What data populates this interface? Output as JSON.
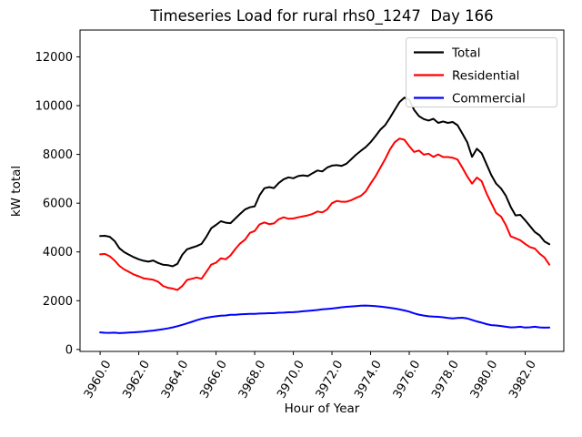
{
  "title": "Timeseries Load for rural rhs0_1247  Day 166",
  "chart_data": {
    "type": "line",
    "title": "Timeseries Load for rural rhs0_1247  Day 166",
    "xlabel": "Hour of Year",
    "ylabel": "kW total",
    "legend_position": "upper right",
    "grid": false,
    "xlim": [
      3958.96,
      3984.0
    ],
    "ylim": [
      -80,
      13100
    ],
    "x_ticks": [
      "3960.0",
      "3962.0",
      "3964.0",
      "3966.0",
      "3968.0",
      "3970.0",
      "3972.0",
      "3974.0",
      "3976.0",
      "3978.0",
      "3980.0",
      "3982.0"
    ],
    "y_ticks": [
      "0",
      "2000",
      "4000",
      "6000",
      "8000",
      "10000",
      "12000"
    ],
    "x_start": 3960.0,
    "x_step": 0.25,
    "series": [
      {
        "name": "Total",
        "color": "#000000",
        "line_width": 2,
        "values": [
          4650,
          4660,
          4620,
          4450,
          4150,
          3990,
          3880,
          3780,
          3700,
          3640,
          3600,
          3650,
          3550,
          3480,
          3460,
          3410,
          3510,
          3880,
          4110,
          4175,
          4240,
          4330,
          4620,
          4970,
          5110,
          5260,
          5200,
          5180,
          5370,
          5560,
          5740,
          5830,
          5870,
          6320,
          6610,
          6660,
          6620,
          6830,
          6980,
          7060,
          7020,
          7110,
          7140,
          7110,
          7230,
          7340,
          7300,
          7460,
          7540,
          7560,
          7530,
          7620,
          7800,
          7990,
          8150,
          8300,
          8500,
          8750,
          9010,
          9200,
          9500,
          9830,
          10150,
          10330,
          10250,
          9830,
          9570,
          9450,
          9390,
          9460,
          9290,
          9350,
          9290,
          9330,
          9200,
          8850,
          8500,
          7900,
          8230,
          8050,
          7600,
          7150,
          6800,
          6600,
          6300,
          5850,
          5500,
          5520,
          5300,
          5060,
          4820,
          4680,
          4430,
          4320
        ]
      },
      {
        "name": "Residential",
        "color": "#ff0000",
        "line_width": 2,
        "values": [
          3900,
          3920,
          3820,
          3650,
          3430,
          3280,
          3180,
          3070,
          3000,
          2920,
          2890,
          2860,
          2780,
          2610,
          2530,
          2500,
          2440,
          2600,
          2850,
          2900,
          2950,
          2900,
          3180,
          3480,
          3560,
          3740,
          3700,
          3860,
          4120,
          4350,
          4500,
          4780,
          4860,
          5130,
          5210,
          5140,
          5170,
          5340,
          5420,
          5360,
          5370,
          5420,
          5460,
          5500,
          5560,
          5660,
          5620,
          5740,
          6000,
          6090,
          6060,
          6060,
          6120,
          6220,
          6300,
          6480,
          6800,
          7100,
          7450,
          7800,
          8200,
          8500,
          8650,
          8600,
          8340,
          8100,
          8160,
          7990,
          8030,
          7900,
          8000,
          7890,
          7890,
          7860,
          7790,
          7450,
          7100,
          6800,
          7050,
          6900,
          6400,
          6000,
          5600,
          5450,
          5100,
          4640,
          4560,
          4480,
          4330,
          4200,
          4140,
          3930,
          3770,
          3480
        ]
      },
      {
        "name": "Commercial",
        "color": "#0000ff",
        "line_width": 2,
        "values": [
          700,
          685,
          680,
          690,
          670,
          680,
          695,
          705,
          720,
          735,
          755,
          775,
          800,
          830,
          865,
          905,
          955,
          1010,
          1070,
          1135,
          1200,
          1255,
          1300,
          1335,
          1360,
          1385,
          1395,
          1420,
          1425,
          1445,
          1450,
          1460,
          1460,
          1475,
          1480,
          1490,
          1490,
          1505,
          1510,
          1525,
          1530,
          1545,
          1565,
          1580,
          1600,
          1620,
          1645,
          1660,
          1680,
          1705,
          1730,
          1750,
          1765,
          1780,
          1795,
          1800,
          1790,
          1775,
          1760,
          1735,
          1710,
          1680,
          1640,
          1600,
          1550,
          1480,
          1430,
          1390,
          1360,
          1350,
          1340,
          1320,
          1290,
          1270,
          1290,
          1300,
          1270,
          1210,
          1150,
          1100,
          1040,
          1000,
          985,
          960,
          930,
          905,
          915,
          930,
          900,
          910,
          930,
          905,
          895,
          900
        ]
      }
    ]
  }
}
